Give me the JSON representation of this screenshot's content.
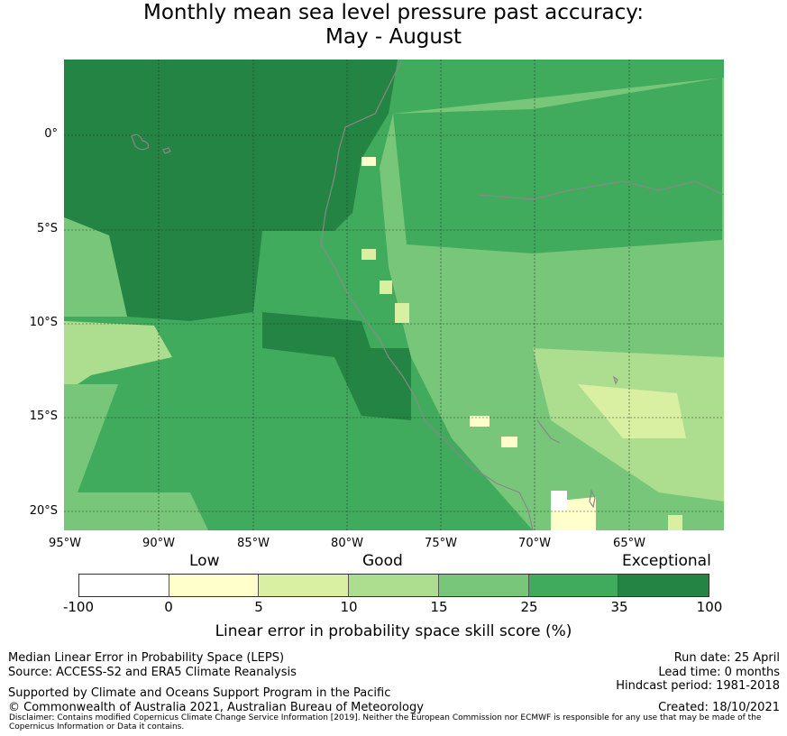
{
  "title_line1": "Monthly mean sea level pressure past accuracy:",
  "title_line2": "May - August",
  "lat_labels": [
    "0°",
    "5°S",
    "10°S",
    "15°S",
    "20°S"
  ],
  "lon_labels": [
    "95°W",
    "90°W",
    "85°W",
    "80°W",
    "75°W",
    "70°W",
    "65°W"
  ],
  "categories": [
    "Low",
    "Good",
    "Exceptional"
  ],
  "colorbar": {
    "ticks": [
      "-100",
      "0",
      "5",
      "10",
      "15",
      "25",
      "35",
      "100"
    ],
    "colors": [
      "#ffffff",
      "#ffffcc",
      "#d9f0a3",
      "#addd8e",
      "#78c679",
      "#41ab5d",
      "#238443"
    ]
  },
  "legend_title": "Linear error in probability space skill score (%)",
  "footer_left": [
    "Median Linear Error in Probability Space (LEPS)",
    "Source: ACCESS-S2 and ERA5 Climate Reanalysis"
  ],
  "footer_right": [
    "Run date: 25 April",
    "Lead time: 0 months",
    "Hindcast period: 1981-2018"
  ],
  "supported": "Supported by Climate and Oceans Support Program in the Pacific",
  "copyright": "© Commonwealth of Australia 2021, Australian Bureau of Meteorology",
  "created": "Created: 18/10/2021",
  "disclaimer": "Disclaimer: Contains modified Copernicus Climate Change Service Information [2019]. Neither the European Commission nor ECMWF is responsible for any use that may be made of the Copernicus Information or Data it contains."
}
